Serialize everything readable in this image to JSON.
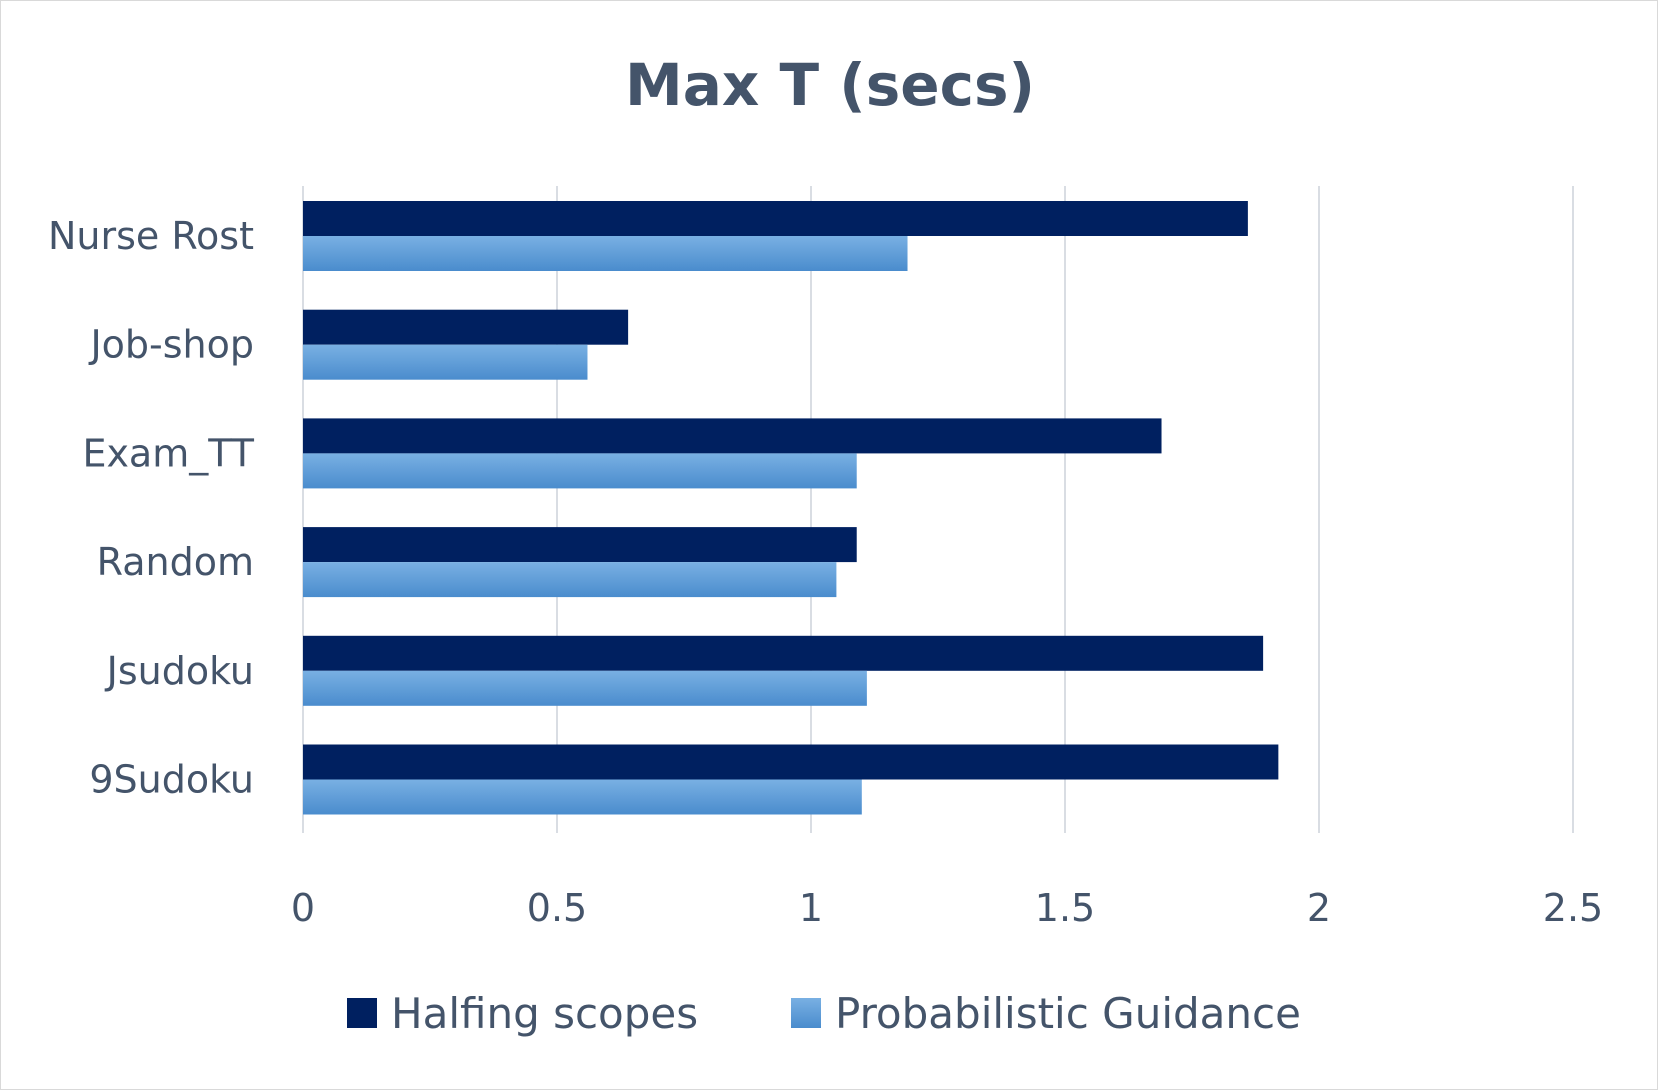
{
  "chart_data": {
    "type": "bar",
    "orientation": "horizontal",
    "title": "Max T (secs)",
    "categories": [
      "Nurse Rost",
      "Job-shop",
      "Exam_TT",
      "Random",
      "Jsudoku",
      "9Sudoku"
    ],
    "series": [
      {
        "name": "Halfing scopes",
        "color": "#002060",
        "values": [
          1.86,
          0.64,
          1.69,
          1.09,
          1.89,
          1.92
        ]
      },
      {
        "name": "Probabilistic Guidance",
        "color": "#5b9bd5",
        "values": [
          1.19,
          0.56,
          1.09,
          1.05,
          1.11,
          1.1
        ]
      }
    ],
    "xlim": [
      0,
      2.5
    ],
    "xticks": [
      "0",
      "0.5",
      "1",
      "1.5",
      "2",
      "2.5"
    ],
    "xtick_values": [
      0,
      0.5,
      1,
      1.5,
      2,
      2.5
    ],
    "grid": true,
    "legend_position": "bottom"
  }
}
